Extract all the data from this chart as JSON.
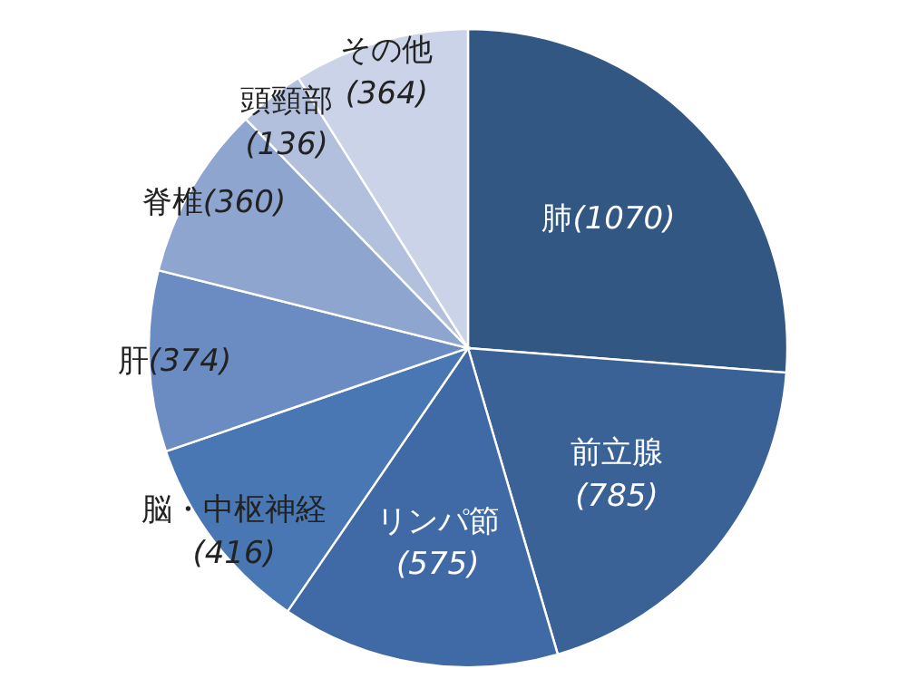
{
  "chart_data": {
    "type": "pie",
    "categories": [
      "肺",
      "前立腺",
      "リンパ節",
      "脳・中枢神経",
      "肝",
      "脊椎",
      "頭頸部",
      "その他"
    ],
    "values": [
      1070,
      785,
      575,
      416,
      374,
      360,
      136,
      364
    ],
    "value_labels": [
      "(1070)",
      "(785)",
      "(575)",
      "(416)",
      "(374)",
      "(360)",
      "(136)",
      "(364)"
    ],
    "colors": [
      "#335783",
      "#3a6296",
      "#3f6aa5",
      "#4877b3",
      "#6a8cc2",
      "#8ea5cf",
      "#b3c0dd",
      "#cad3e7"
    ]
  }
}
